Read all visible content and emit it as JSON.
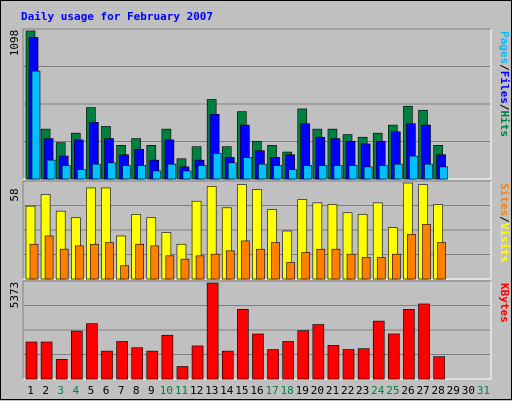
{
  "title": "Daily usage for February 2007",
  "colors": {
    "hits": "#008040",
    "files": "#0000ff",
    "pages": "#00c0ff",
    "visits": "#ffff00",
    "sites": "#ff8000",
    "kbytes": "#ff0000",
    "weekday_label": "#000000",
    "weekend_label": "#008040",
    "background": "#c0c0c0"
  },
  "chart_data": [
    {
      "type": "bar",
      "name": "hits-files-pages",
      "max_label": "1098",
      "side_labels": [
        {
          "text": "Pages",
          "color": "#00c0ff"
        },
        {
          "text": "/",
          "color": "#000000"
        },
        {
          "text": "Files",
          "color": "#0000ff"
        },
        {
          "text": "/",
          "color": "#000000"
        },
        {
          "text": "Hits",
          "color": "#008040"
        }
      ],
      "ylim": [
        0,
        1098
      ],
      "categories": [
        "1",
        "2",
        "3",
        "4",
        "5",
        "6",
        "7",
        "8",
        "9",
        "10",
        "11",
        "12",
        "13",
        "14",
        "15",
        "16",
        "17",
        "18",
        "19",
        "20",
        "21",
        "22",
        "23",
        "24",
        "25",
        "26",
        "27",
        "28",
        "29",
        "30",
        "31"
      ],
      "series": [
        {
          "key": "hits",
          "values": [
            1098,
            370,
            270,
            340,
            530,
            390,
            250,
            300,
            250,
            370,
            150,
            240,
            590,
            240,
            500,
            280,
            250,
            200,
            520,
            370,
            370,
            330,
            310,
            340,
            400,
            540,
            510,
            250,
            0,
            0,
            0
          ]
        },
        {
          "key": "files",
          "values": [
            1050,
            300,
            170,
            290,
            420,
            300,
            180,
            220,
            140,
            290,
            90,
            140,
            480,
            160,
            400,
            210,
            160,
            180,
            410,
            310,
            300,
            280,
            260,
            280,
            350,
            410,
            400,
            180,
            0,
            0,
            0
          ]
        },
        {
          "key": "pages",
          "values": [
            800,
            140,
            100,
            70,
            110,
            120,
            100,
            100,
            60,
            110,
            60,
            100,
            190,
            120,
            160,
            110,
            100,
            70,
            100,
            100,
            100,
            100,
            90,
            100,
            110,
            170,
            110,
            90,
            0,
            0,
            0
          ]
        }
      ]
    },
    {
      "type": "bar",
      "name": "visits-sites",
      "max_label": "58",
      "side_labels": [
        {
          "text": "Sites",
          "color": "#ff8000"
        },
        {
          "text": "/",
          "color": "#000000"
        },
        {
          "text": "Visits",
          "color": "#ffff00"
        }
      ],
      "ylim": [
        0,
        58
      ],
      "categories": [
        "1",
        "2",
        "3",
        "4",
        "5",
        "6",
        "7",
        "8",
        "9",
        "10",
        "11",
        "12",
        "13",
        "14",
        "15",
        "16",
        "17",
        "18",
        "19",
        "20",
        "21",
        "22",
        "23",
        "24",
        "25",
        "26",
        "27",
        "28",
        "29",
        "30",
        "31"
      ],
      "series": [
        {
          "key": "visits",
          "values": [
            44,
            51,
            41,
            37,
            55,
            55,
            26,
            39,
            37,
            28,
            21,
            47,
            56,
            43,
            57,
            54,
            42,
            29,
            48,
            46,
            45,
            40,
            39,
            46,
            31,
            58,
            57,
            45,
            0,
            0,
            0
          ]
        },
        {
          "key": "sites",
          "values": [
            21,
            26,
            18,
            20,
            21,
            22,
            8,
            21,
            20,
            14,
            12,
            14,
            15,
            17,
            23,
            18,
            22,
            10,
            16,
            18,
            18,
            15,
            13,
            13,
            15,
            27,
            33,
            22,
            0,
            0,
            0
          ]
        }
      ]
    },
    {
      "type": "bar",
      "name": "kbytes",
      "max_label": "5373",
      "side_labels": [
        {
          "text": "KBytes",
          "color": "#ff0000"
        }
      ],
      "ylim": [
        0,
        5373
      ],
      "categories": [
        "1",
        "2",
        "3",
        "4",
        "5",
        "6",
        "7",
        "8",
        "9",
        "10",
        "11",
        "12",
        "13",
        "14",
        "15",
        "16",
        "17",
        "18",
        "19",
        "20",
        "21",
        "22",
        "23",
        "24",
        "25",
        "26",
        "27",
        "28",
        "29",
        "30",
        "31"
      ],
      "series": [
        {
          "key": "kbytes",
          "values": [
            2070,
            2070,
            1100,
            2680,
            3100,
            1560,
            2100,
            1750,
            1560,
            2450,
            700,
            1850,
            5373,
            1560,
            3900,
            2520,
            1650,
            2100,
            2700,
            3050,
            1880,
            1650,
            1700,
            3240,
            2520,
            3900,
            4200,
            1250,
            0,
            0,
            0
          ]
        }
      ]
    }
  ],
  "days": [
    {
      "label": "1",
      "weekend": false
    },
    {
      "label": "2",
      "weekend": false
    },
    {
      "label": "3",
      "weekend": true
    },
    {
      "label": "4",
      "weekend": true
    },
    {
      "label": "5",
      "weekend": false
    },
    {
      "label": "6",
      "weekend": false
    },
    {
      "label": "7",
      "weekend": false
    },
    {
      "label": "8",
      "weekend": false
    },
    {
      "label": "9",
      "weekend": false
    },
    {
      "label": "10",
      "weekend": true
    },
    {
      "label": "11",
      "weekend": true
    },
    {
      "label": "12",
      "weekend": false
    },
    {
      "label": "13",
      "weekend": false
    },
    {
      "label": "14",
      "weekend": false
    },
    {
      "label": "15",
      "weekend": false
    },
    {
      "label": "16",
      "weekend": false
    },
    {
      "label": "17",
      "weekend": true
    },
    {
      "label": "18",
      "weekend": true
    },
    {
      "label": "19",
      "weekend": false
    },
    {
      "label": "20",
      "weekend": false
    },
    {
      "label": "21",
      "weekend": false
    },
    {
      "label": "22",
      "weekend": false
    },
    {
      "label": "23",
      "weekend": false
    },
    {
      "label": "24",
      "weekend": true
    },
    {
      "label": "25",
      "weekend": true
    },
    {
      "label": "26",
      "weekend": false
    },
    {
      "label": "27",
      "weekend": false
    },
    {
      "label": "28",
      "weekend": false
    },
    {
      "label": "29",
      "weekend": false
    },
    {
      "label": "30",
      "weekend": false
    },
    {
      "label": "31",
      "weekend": true
    }
  ]
}
